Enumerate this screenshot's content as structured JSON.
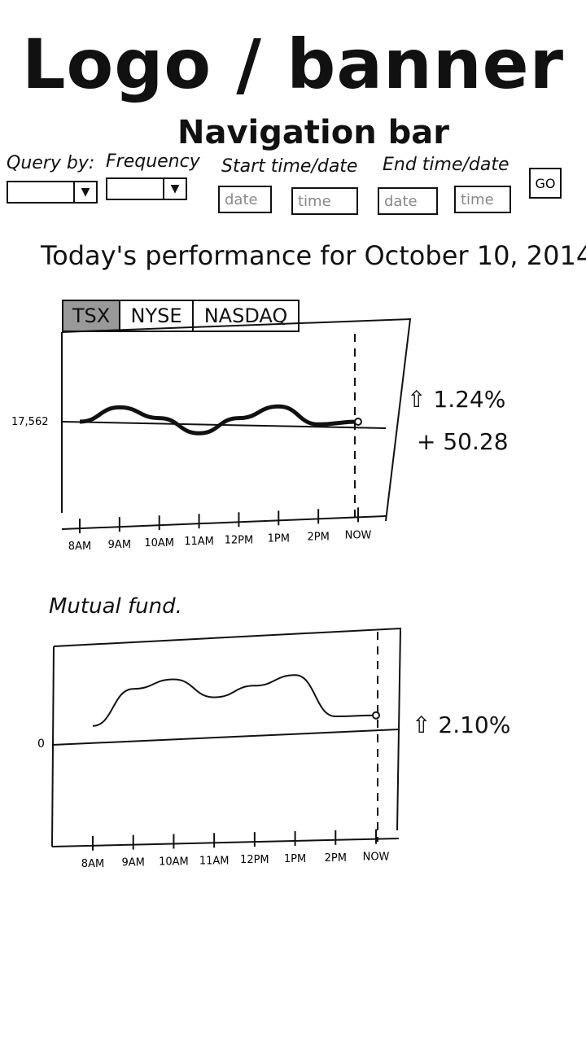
{
  "header": {
    "logo_text": "Logo / banner",
    "nav_text": "Navigation bar"
  },
  "query": {
    "query_by_label": "Query by:",
    "frequency_label": "Frequency",
    "start_label": "Start time/date",
    "end_label": "End time/date",
    "start_date_placeholder": "date",
    "start_time_placeholder": "time",
    "end_date_placeholder": "date",
    "end_time_placeholder": "time",
    "go_label": "GO"
  },
  "performance": {
    "title": "Today's performance for October 10, 2014",
    "tabs": [
      {
        "label": "TSX",
        "active": true
      },
      {
        "label": "NYSE",
        "active": false
      },
      {
        "label": "NASDAQ",
        "active": false
      }
    ],
    "change_percent": "1.24%",
    "change_points": "+ 50.28",
    "arrow_icon": "up-arrow-icon"
  },
  "mutual_fund": {
    "title": "Mutual fund.",
    "change_percent": "2.10%",
    "arrow_icon": "up-arrow-icon"
  },
  "chart_data": [
    {
      "type": "line",
      "title": "",
      "x": [
        "8AM",
        "9AM",
        "10AM",
        "11AM",
        "12PM",
        "1PM",
        "2PM",
        "NOW"
      ],
      "baseline_label": "17,562",
      "series": [
        {
          "values": [
            17562,
            17578,
            17566,
            17549,
            17566,
            17579,
            17559,
            17562
          ]
        }
      ],
      "grid": false
    },
    {
      "type": "line",
      "title": "",
      "x": [
        "8AM",
        "9AM",
        "10AM",
        "11AM",
        "12PM",
        "1PM",
        "2PM",
        "NOW"
      ],
      "baseline_label": "0",
      "series": [
        {
          "values": [
            1.1,
            4.6,
            5.5,
            3.8,
            4.9,
            5.9,
            2.0,
            2.1
          ]
        }
      ],
      "grid": false
    }
  ]
}
